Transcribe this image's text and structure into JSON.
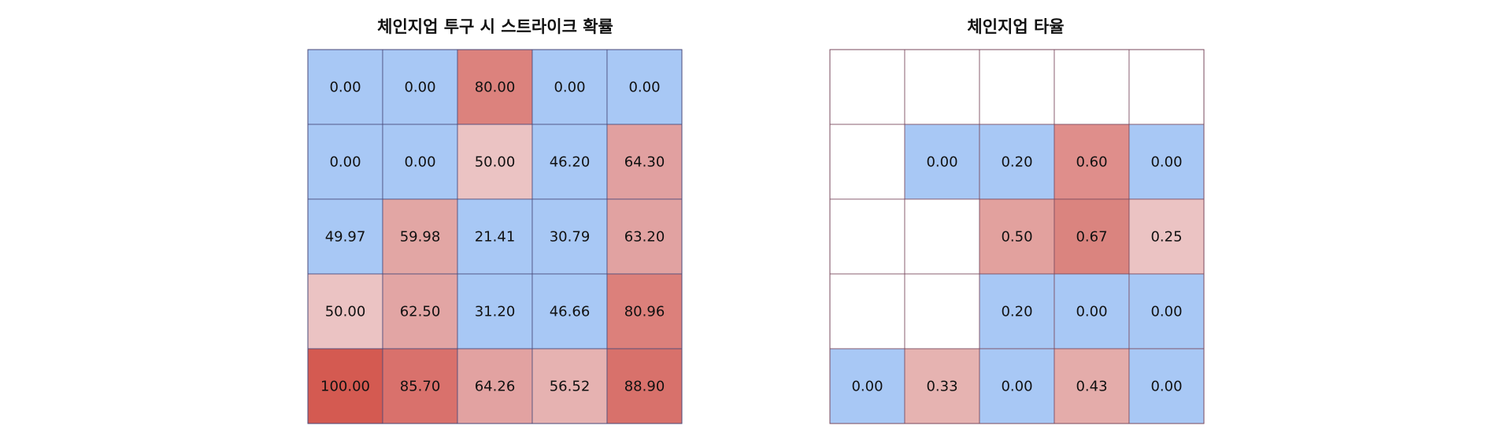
{
  "chart_data": [
    {
      "type": "heatmap",
      "title": "체인지업 투구 시 스트라이크 확률",
      "rows": 5,
      "cols": 5,
      "values": [
        [
          0.0,
          0.0,
          80.0,
          0.0,
          0.0
        ],
        [
          0.0,
          0.0,
          50.0,
          46.2,
          64.3
        ],
        [
          49.97,
          59.98,
          21.41,
          30.79,
          63.2
        ],
        [
          50.0,
          62.5,
          31.2,
          46.66,
          80.96
        ],
        [
          100.0,
          85.7,
          64.26,
          56.52,
          88.9
        ]
      ],
      "labels": [
        [
          "0.00",
          "0.00",
          "80.00",
          "0.00",
          "0.00"
        ],
        [
          "0.00",
          "0.00",
          "50.00",
          "46.20",
          "64.30"
        ],
        [
          "49.97",
          "59.98",
          "21.41",
          "30.79",
          "63.20"
        ],
        [
          "50.00",
          "62.50",
          "31.20",
          "46.66",
          "80.96"
        ],
        [
          "100.00",
          "85.70",
          "64.26",
          "56.52",
          "88.90"
        ]
      ],
      "fills": [
        [
          "#a8c8f5",
          "#a8c8f5",
          "#dc827d",
          "#a8c8f5",
          "#a8c8f5"
        ],
        [
          "#a8c8f5",
          "#a8c8f5",
          "#ebc3c3",
          "#a8c8f5",
          "#e1a0a0"
        ],
        [
          "#a8c8f5",
          "#e2a6a4",
          "#a8c8f5",
          "#a8c8f5",
          "#e1a2a1"
        ],
        [
          "#ebc3c3",
          "#e2a5a4",
          "#a8c8f5",
          "#a8c8f5",
          "#dc807b"
        ],
        [
          "#d45a51",
          "#d9716c",
          "#e2a2a1",
          "#e6b2b1",
          "#d8716b"
        ]
      ]
    },
    {
      "type": "heatmap",
      "title": "체인지업 타율",
      "rows": 5,
      "cols": 5,
      "values": [
        [
          null,
          null,
          null,
          null,
          null
        ],
        [
          null,
          0.0,
          0.2,
          0.6,
          0.0
        ],
        [
          null,
          null,
          0.5,
          0.67,
          0.25
        ],
        [
          null,
          null,
          0.2,
          0.0,
          0.0
        ],
        [
          0.0,
          0.33,
          0.0,
          0.43,
          0.0
        ]
      ],
      "labels": [
        [
          "",
          "",
          "",
          "",
          ""
        ],
        [
          "",
          "0.00",
          "0.20",
          "0.60",
          "0.00"
        ],
        [
          "",
          "",
          "0.50",
          "0.67",
          "0.25"
        ],
        [
          "",
          "",
          "0.20",
          "0.00",
          "0.00"
        ],
        [
          "0.00",
          "0.33",
          "0.00",
          "0.43",
          "0.00"
        ]
      ],
      "fills": [
        [
          "#ffffff",
          "#ffffff",
          "#ffffff",
          "#ffffff",
          "#ffffff"
        ],
        [
          "#ffffff",
          "#a8c8f5",
          "#a8c8f5",
          "#df8e8b",
          "#a8c8f5"
        ],
        [
          "#ffffff",
          "#ffffff",
          "#e2a19e",
          "#da847f",
          "#ebc3c3"
        ],
        [
          "#ffffff",
          "#ffffff",
          "#a8c8f5",
          "#a8c8f5",
          "#a8c8f5"
        ],
        [
          "#a8c8f5",
          "#e6b3b1",
          "#a8c8f5",
          "#e4acaa",
          "#a8c8f5"
        ]
      ]
    }
  ]
}
